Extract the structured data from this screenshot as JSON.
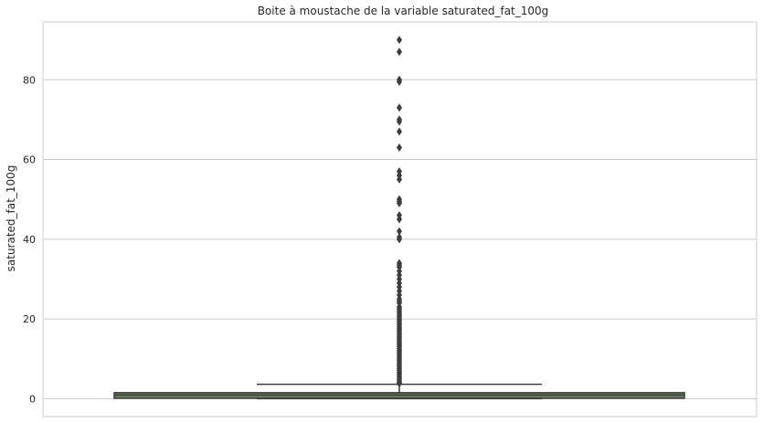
{
  "chart_data": {
    "type": "box",
    "title": "Boite à moustache de la variable saturated_fat_100g",
    "ylabel": "saturated_fat_100g",
    "xlabel": "",
    "ylim": [
      -4.5,
      94.5
    ],
    "yticks": [
      0,
      20,
      40,
      60,
      80
    ],
    "grid": "horizontal",
    "box": {
      "q1": 0.1,
      "median": 0.9,
      "q3": 1.5,
      "whisker_low": 0,
      "whisker_high": 3.6,
      "color": "#6b7d5e",
      "edge_color": "#3d3d3d"
    },
    "outliers": [
      90,
      87,
      80,
      79.5,
      73,
      70,
      69.5,
      67,
      63,
      57,
      56,
      55,
      50,
      49.5,
      49,
      46,
      45,
      42,
      40.5,
      40,
      34,
      33.5,
      33,
      32,
      31,
      30,
      29,
      28,
      27,
      26,
      25,
      24.5,
      24,
      23,
      22.5,
      22,
      21.5,
      21,
      20.5,
      20,
      19.5,
      19,
      18.5,
      18,
      17.5,
      17,
      16.5,
      16,
      15.5,
      15,
      14.5,
      14,
      13.5,
      13,
      12.5,
      12,
      11.5,
      11,
      10.5,
      10,
      9.5,
      9,
      8.5,
      8,
      7.5,
      7,
      6.5,
      6,
      5.5,
      5,
      4.5,
      4,
      3.8
    ]
  }
}
